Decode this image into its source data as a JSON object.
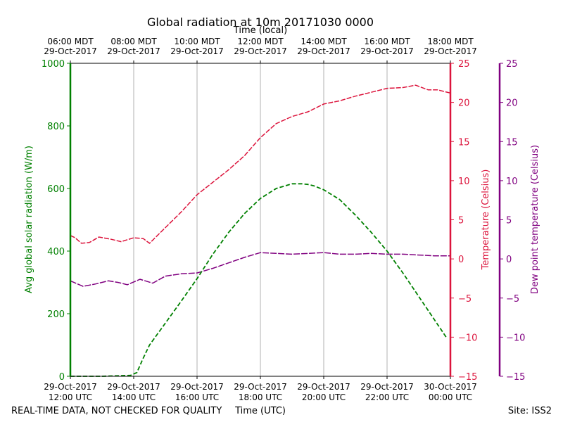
{
  "chart_data": {
    "type": "line",
    "title": "Global radiation at 10m 20171030 0000",
    "top_axis_label": "Time (local)",
    "xlabel": "Time (UTC)",
    "footer_left": "REAL-TIME DATA, NOT CHECKED FOR QUALITY",
    "footer_right": "Site: ISS2",
    "x_hours_range": [
      12,
      24
    ],
    "bottom_ticks": [
      {
        "h": 12,
        "line1": "29-Oct-2017",
        "line2": "12:00 UTC"
      },
      {
        "h": 14,
        "line1": "29-Oct-2017",
        "line2": "14:00 UTC"
      },
      {
        "h": 16,
        "line1": "29-Oct-2017",
        "line2": "16:00 UTC"
      },
      {
        "h": 18,
        "line1": "29-Oct-2017",
        "line2": "18:00 UTC"
      },
      {
        "h": 20,
        "line1": "29-Oct-2017",
        "line2": "20:00 UTC"
      },
      {
        "h": 22,
        "line1": "29-Oct-2017",
        "line2": "22:00 UTC"
      },
      {
        "h": 24,
        "line1": "30-Oct-2017",
        "line2": "00:00 UTC"
      }
    ],
    "top_ticks": [
      {
        "h": 12,
        "line1": "06:00 MDT",
        "line2": "29-Oct-2017"
      },
      {
        "h": 14,
        "line1": "08:00 MDT",
        "line2": "29-Oct-2017"
      },
      {
        "h": 16,
        "line1": "10:00 MDT",
        "line2": "29-Oct-2017"
      },
      {
        "h": 18,
        "line1": "12:00 MDT",
        "line2": "29-Oct-2017"
      },
      {
        "h": 20,
        "line1": "14:00 MDT",
        "line2": "29-Oct-2017"
      },
      {
        "h": 22,
        "line1": "16:00 MDT",
        "line2": "29-Oct-2017"
      },
      {
        "h": 24,
        "line1": "18:00 MDT",
        "line2": "29-Oct-2017"
      }
    ],
    "axes": {
      "radiation": {
        "label": "Avg global solar radiation (W/m)",
        "ylim": [
          0,
          1000
        ],
        "ticks": [
          0,
          200,
          400,
          600,
          800,
          1000
        ],
        "color": "#008000"
      },
      "temperature": {
        "label": "Temperature (Celsius)",
        "ylim": [
          -15,
          25
        ],
        "ticks": [
          -15,
          -10,
          -5,
          0,
          5,
          10,
          15,
          20,
          25
        ],
        "color": "#dc143c"
      },
      "dewpoint": {
        "label": "Dew point temperature (Celsius)",
        "ylim": [
          -15,
          25
        ],
        "ticks": [
          -15,
          -10,
          -5,
          0,
          5,
          10,
          15,
          20,
          25
        ],
        "color": "#800080"
      }
    },
    "series": [
      {
        "name": "radiation",
        "axis": "radiation",
        "color": "#008000",
        "style": "dashed",
        "x": [
          12.0,
          13.0,
          13.9,
          14.1,
          14.3,
          14.5,
          15.0,
          15.5,
          16.0,
          16.5,
          17.0,
          17.5,
          18.0,
          18.5,
          19.0,
          19.3,
          19.5,
          19.7,
          20.0,
          20.5,
          21.0,
          21.5,
          22.0,
          22.5,
          23.0,
          23.5,
          23.9
        ],
        "values": [
          0,
          0,
          3,
          12,
          58,
          100,
          170,
          240,
          312,
          390,
          460,
          520,
          568,
          600,
          615,
          615,
          613,
          608,
          596,
          565,
          515,
          460,
          400,
          330,
          255,
          180,
          120
        ]
      },
      {
        "name": "temperature",
        "axis": "temperature",
        "color": "#dc143c",
        "style": "solid",
        "x": [
          12.0,
          12.15,
          12.35,
          12.6,
          12.9,
          13.3,
          13.6,
          14.0,
          14.3,
          14.5,
          14.8,
          15.0,
          15.5,
          16.0,
          16.5,
          17.0,
          17.5,
          18.0,
          18.5,
          19.0,
          19.5,
          20.0,
          20.5,
          21.0,
          21.5,
          22.0,
          22.5,
          22.9,
          23.3,
          23.6,
          24.0
        ],
        "values": [
          3.0,
          2.7,
          2.0,
          2.1,
          2.8,
          2.5,
          2.2,
          2.7,
          2.6,
          2.0,
          3.2,
          4.0,
          6.0,
          8.2,
          9.8,
          11.4,
          13.2,
          15.5,
          17.3,
          18.2,
          18.8,
          19.8,
          20.2,
          20.8,
          21.3,
          21.8,
          21.9,
          22.2,
          21.6,
          21.6,
          21.2
        ]
      },
      {
        "name": "dewpoint",
        "axis": "dewpoint",
        "color": "#800080",
        "style": "solid",
        "x": [
          12.0,
          12.4,
          12.8,
          13.2,
          13.5,
          13.8,
          14.2,
          14.6,
          15.0,
          15.5,
          16.0,
          16.5,
          17.0,
          17.5,
          18.0,
          18.5,
          19.0,
          19.5,
          20.0,
          20.5,
          21.0,
          21.5,
          22.0,
          22.5,
          23.0,
          23.5,
          24.0
        ],
        "values": [
          -2.8,
          -3.5,
          -3.2,
          -2.8,
          -3.0,
          -3.3,
          -2.6,
          -3.1,
          -2.2,
          -1.9,
          -1.8,
          -1.2,
          -0.5,
          0.2,
          0.8,
          0.7,
          0.6,
          0.7,
          0.8,
          0.6,
          0.6,
          0.7,
          0.6,
          0.6,
          0.5,
          0.4,
          0.4
        ]
      }
    ]
  }
}
